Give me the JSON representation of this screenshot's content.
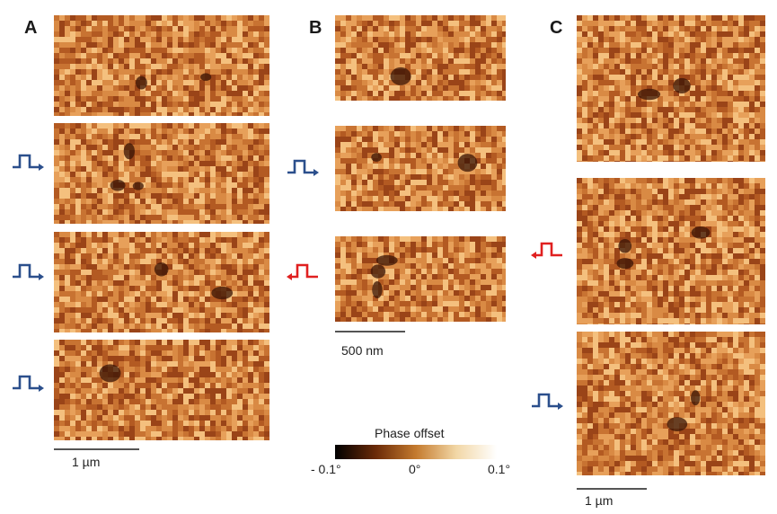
{
  "panels": {
    "a": {
      "label": "A",
      "scale_label": "1 µm"
    },
    "b": {
      "label": "B",
      "scale_label": "500 nm"
    },
    "c": {
      "label": "C",
      "scale_label": "1 µm"
    }
  },
  "colorbar": {
    "title": "Phase offset",
    "ticks": [
      "- 0.1°",
      "0°",
      "0.1°"
    ],
    "colors": [
      "#000000",
      "#6a2a08",
      "#c47a2e",
      "#f2d7a6",
      "#ffffff"
    ]
  },
  "pulse_colors": {
    "positive": "#2b4f8c",
    "negative": "#e02020"
  },
  "texture_colors": [
    "#f4c07e",
    "#e7a05a",
    "#d98a44",
    "#c87332",
    "#b35a22",
    "#9a4418"
  ]
}
